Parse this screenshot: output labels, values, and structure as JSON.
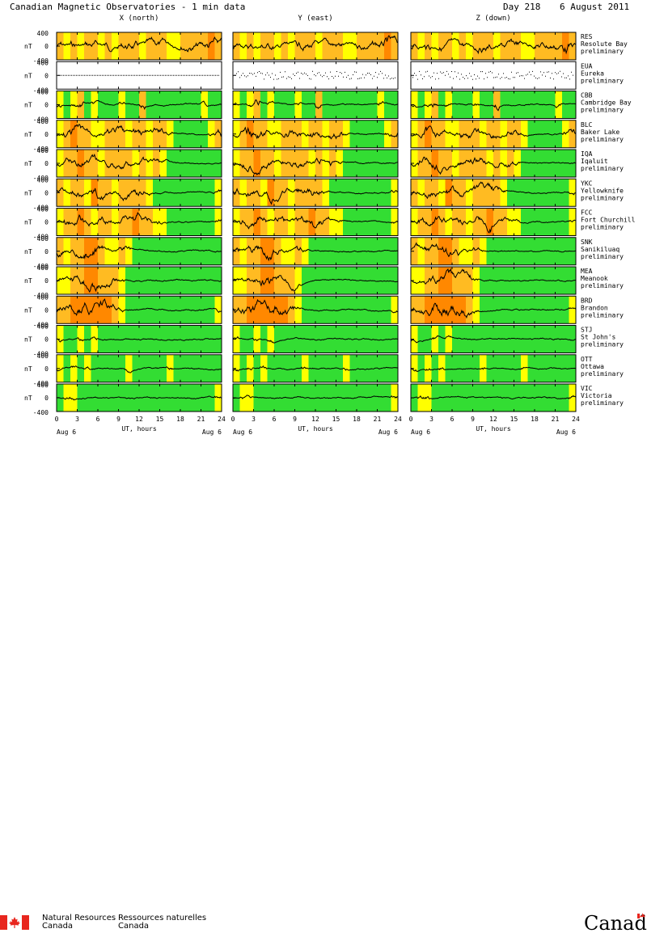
{
  "header": {
    "title": "Canadian Magnetic Observatories - 1 min data",
    "day": "Day 218",
    "date": "6 August 2011"
  },
  "columns": [
    "X (north)",
    "Y (east)",
    "Z (down)"
  ],
  "unit": "nT",
  "x_axis": {
    "ticks": [
      "0",
      "3",
      "6",
      "9",
      "12",
      "15",
      "18",
      "21",
      "24"
    ],
    "label": "UT, hours",
    "date_left": "Aug  6",
    "date_right": "Aug  6"
  },
  "footer": {
    "dept_en_1": "Natural Resources",
    "dept_en_2": "Canada",
    "dept_fr_1": "Ressources naturelles",
    "dept_fr_2": "Canada",
    "wordmark": "Canada"
  },
  "colors": {
    "quiet": "#33dd33",
    "unsettled": "#ffff00",
    "active": "#ffbb22",
    "storm": "#ff8800",
    "nodata": "#ffffff"
  },
  "chart_data": {
    "type": "line",
    "x_range": [
      0,
      24
    ],
    "y_range": [
      -400,
      400
    ],
    "y_ticks": [
      "400",
      "0",
      "-400"
    ],
    "stations": [
      {
        "code": "RES",
        "name": "Resolute Bay",
        "status": "preliminary",
        "activity": [
          "a",
          "u",
          "a",
          "u",
          "a",
          "a",
          "u",
          "a",
          "u",
          "a",
          "a",
          "a",
          "u",
          "a",
          "a",
          "a",
          "u",
          "u",
          "a",
          "a",
          "a",
          "a",
          "s",
          "a"
        ]
      },
      {
        "code": "EUA",
        "name": "Eureka",
        "status": "preliminary",
        "activity": [
          "n",
          "n",
          "n",
          "n",
          "n",
          "n",
          "n",
          "n",
          "n",
          "n",
          "n",
          "n",
          "n",
          "n",
          "n",
          "n",
          "n",
          "n",
          "n",
          "n",
          "n",
          "n",
          "n",
          "n"
        ]
      },
      {
        "code": "CBB",
        "name": "Cambridge Bay",
        "status": "preliminary",
        "activity": [
          "u",
          "q",
          "u",
          "a",
          "q",
          "u",
          "q",
          "q",
          "q",
          "u",
          "q",
          "q",
          "a",
          "q",
          "q",
          "q",
          "q",
          "q",
          "q",
          "q",
          "q",
          "u",
          "q",
          "q"
        ]
      },
      {
        "code": "BLC",
        "name": "Baker Lake",
        "status": "preliminary",
        "activity": [
          "u",
          "a",
          "s",
          "a",
          "a",
          "u",
          "u",
          "a",
          "a",
          "a",
          "u",
          "a",
          "a",
          "u",
          "a",
          "a",
          "u",
          "q",
          "q",
          "q",
          "q",
          "q",
          "u",
          "a"
        ]
      },
      {
        "code": "IQA",
        "name": "Iqaluit",
        "status": "preliminary",
        "activity": [
          "u",
          "a",
          "a",
          "s",
          "a",
          "a",
          "u",
          "a",
          "a",
          "a",
          "a",
          "u",
          "a",
          "u",
          "a",
          "u",
          "q",
          "q",
          "q",
          "q",
          "q",
          "q",
          "q",
          "q"
        ]
      },
      {
        "code": "YKC",
        "name": "Yellowknife",
        "status": "preliminary",
        "activity": [
          "a",
          "u",
          "a",
          "a",
          "u",
          "s",
          "a",
          "a",
          "u",
          "a",
          "a",
          "a",
          "a",
          "u",
          "q",
          "q",
          "q",
          "q",
          "q",
          "q",
          "q",
          "q",
          "q",
          "u"
        ]
      },
      {
        "code": "FCC",
        "name": "Fort Churchill",
        "status": "preliminary",
        "activity": [
          "u",
          "a",
          "a",
          "s",
          "a",
          "u",
          "a",
          "a",
          "u",
          "a",
          "a",
          "s",
          "a",
          "a",
          "u",
          "u",
          "q",
          "q",
          "q",
          "q",
          "q",
          "q",
          "q",
          "u"
        ]
      },
      {
        "code": "SNK",
        "name": "Sanikiluaq",
        "status": "preliminary",
        "activity": [
          "a",
          "u",
          "a",
          "a",
          "s",
          "s",
          "a",
          "u",
          "u",
          "a",
          "u",
          "q",
          "q",
          "q",
          "q",
          "q",
          "q",
          "q",
          "q",
          "q",
          "q",
          "q",
          "q",
          "q"
        ]
      },
      {
        "code": "MEA",
        "name": "Meanook",
        "status": "preliminary",
        "activity": [
          "u",
          "u",
          "a",
          "a",
          "s",
          "s",
          "a",
          "a",
          "a",
          "u",
          "q",
          "q",
          "q",
          "q",
          "q",
          "q",
          "q",
          "q",
          "q",
          "q",
          "q",
          "q",
          "q",
          "q"
        ]
      },
      {
        "code": "BRD",
        "name": "Brandon",
        "status": "preliminary",
        "activity": [
          "a",
          "a",
          "s",
          "s",
          "s",
          "s",
          "s",
          "s",
          "a",
          "u",
          "q",
          "q",
          "q",
          "q",
          "q",
          "q",
          "q",
          "q",
          "q",
          "q",
          "q",
          "q",
          "q",
          "u"
        ]
      },
      {
        "code": "STJ",
        "name": "St John's",
        "status": "preliminary",
        "activity": [
          "u",
          "q",
          "q",
          "u",
          "q",
          "u",
          "q",
          "q",
          "q",
          "q",
          "q",
          "q",
          "q",
          "q",
          "q",
          "q",
          "q",
          "q",
          "q",
          "q",
          "q",
          "q",
          "q",
          "q"
        ]
      },
      {
        "code": "OTT",
        "name": "Ottawa",
        "status": "preliminary",
        "activity": [
          "u",
          "q",
          "u",
          "q",
          "u",
          "q",
          "q",
          "q",
          "q",
          "q",
          "u",
          "q",
          "q",
          "q",
          "q",
          "q",
          "u",
          "q",
          "q",
          "q",
          "q",
          "q",
          "q",
          "q"
        ]
      },
      {
        "code": "VIC",
        "name": "Victoria",
        "status": "preliminary",
        "activity": [
          "q",
          "u",
          "u",
          "q",
          "q",
          "q",
          "q",
          "q",
          "q",
          "q",
          "q",
          "q",
          "q",
          "q",
          "q",
          "q",
          "q",
          "q",
          "q",
          "q",
          "q",
          "q",
          "q",
          "u"
        ]
      }
    ],
    "traces": "approximate 1-minute geomagnetic variation traces per station and component"
  }
}
